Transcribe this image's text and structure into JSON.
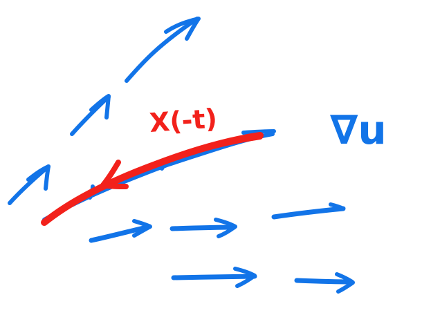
{
  "colors": {
    "field": "#1274e8",
    "trajectory": "#f2211b",
    "background": "#ffffff"
  },
  "labels": {
    "trajectory": "X(-t)",
    "gradient": "∇u"
  },
  "icons": {
    "field_arrow": "arrow-icon",
    "trajectory_arrow": "arrow-icon"
  }
}
